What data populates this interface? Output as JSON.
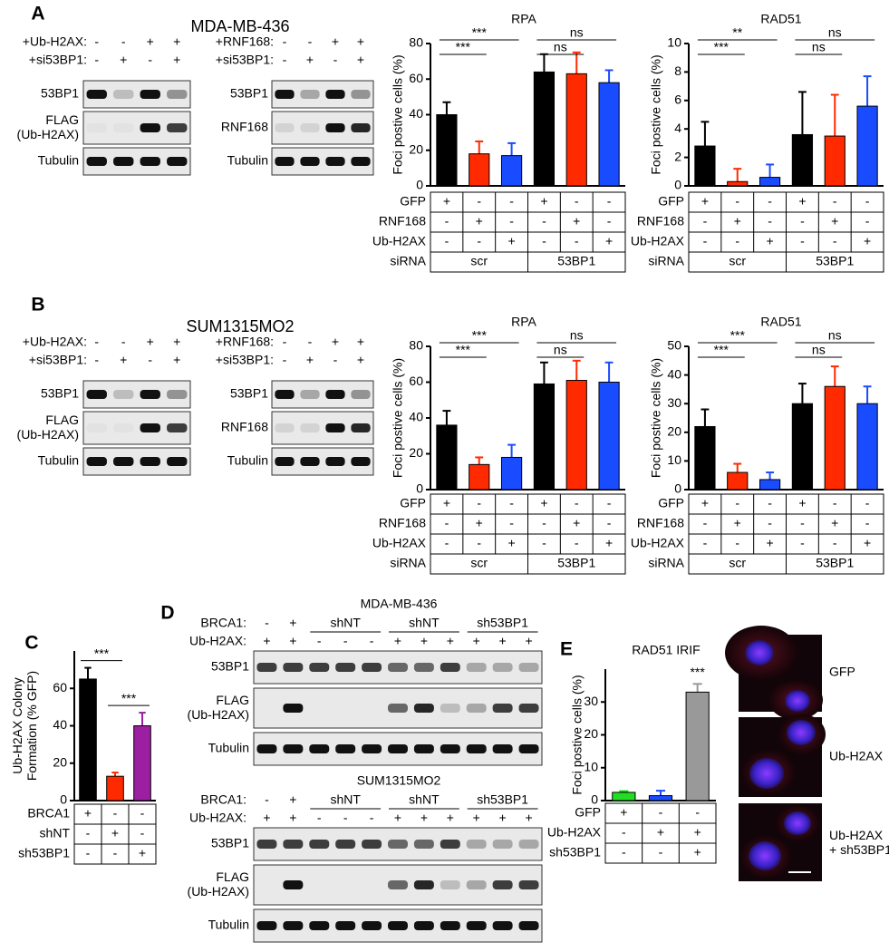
{
  "panel_labels": [
    "A",
    "B",
    "C",
    "D",
    "E"
  ],
  "blots_ab": [
    {
      "cell_line": "MDA-MB-436",
      "left": {
        "rows": [
          {
            "label": "+Ub-H2AX:",
            "values": [
              "-",
              "-",
              "+",
              "+"
            ]
          },
          {
            "label": "+si53BP1:",
            "values": [
              "-",
              "+",
              "-",
              "+"
            ]
          }
        ],
        "bands": [
          "53BP1",
          "FLAG\n(Ub-H2AX)",
          "Tubulin"
        ]
      },
      "right": {
        "rows": [
          {
            "label": "+RNF168:",
            "values": [
              "-",
              "-",
              "+",
              "+"
            ]
          },
          {
            "label": "+si53BP1:",
            "values": [
              "-",
              "+",
              "-",
              "+"
            ]
          }
        ],
        "bands": [
          "53BP1",
          "RNF168",
          "Tubulin"
        ]
      }
    },
    {
      "cell_line": "SUM1315MO2",
      "left": {
        "rows": [
          {
            "label": "+Ub-H2AX:",
            "values": [
              "-",
              "-",
              "+",
              "+"
            ]
          },
          {
            "label": "+si53BP1:",
            "values": [
              "-",
              "+",
              "-",
              "+"
            ]
          }
        ],
        "bands": [
          "53BP1",
          "FLAG\n(Ub-H2AX)",
          "Tubulin"
        ]
      },
      "right": {
        "rows": [
          {
            "label": "+RNF168:",
            "values": [
              "-",
              "-",
              "+",
              "+"
            ]
          },
          {
            "label": "+si53BP1:",
            "values": [
              "-",
              "+",
              "-",
              "+"
            ]
          }
        ],
        "bands": [
          "53BP1",
          "RNF168",
          "Tubulin"
        ]
      }
    }
  ],
  "blots_d": [
    {
      "cell_line": "MDA-MB-436",
      "brca1_label": "BRCA1:",
      "brca1": [
        "-",
        "+",
        "shNT",
        "shNT",
        "sh53BP1"
      ],
      "ub_label": "Ub-H2AX:",
      "ub": [
        "+",
        "+",
        "-",
        "-",
        "-",
        "+",
        "+",
        "+",
        "+",
        "+",
        "+"
      ],
      "bands": [
        "53BP1",
        "FLAG\n(Ub-H2AX)",
        "Tubulin"
      ]
    },
    {
      "cell_line": "SUM1315MO2",
      "brca1_label": "BRCA1:",
      "brca1": [
        "-",
        "+",
        "shNT",
        "shNT",
        "sh53BP1"
      ],
      "ub_label": "Ub-H2AX:",
      "ub": [
        "+",
        "+",
        "-",
        "-",
        "-",
        "+",
        "+",
        "+",
        "+",
        "+",
        "+"
      ],
      "bands": [
        "53BP1",
        "FLAG\n(Ub-H2AX)",
        "Tubulin"
      ]
    }
  ],
  "images": [
    "GFP",
    "Ub-H2AX",
    "Ub-H2AX\n+ sh53BP1"
  ],
  "chart_data": [
    {
      "type": "bar",
      "title": "RPA",
      "y_label": "Foci postive cells (%)",
      "values": [
        40,
        18,
        17,
        64,
        63,
        58
      ],
      "errors": [
        7,
        7,
        7,
        10,
        12,
        7
      ],
      "colors": [
        "#000000",
        "#ff2a00",
        "#1a4cff",
        "#000000",
        "#ff2a00",
        "#1a4cff"
      ],
      "ylim": [
        0,
        80
      ],
      "yticks": [
        0,
        20,
        40,
        60,
        80
      ],
      "significance": [
        {
          "label": "***",
          "from": 0,
          "to": 1
        },
        {
          "label": "***",
          "from": 0,
          "to": 2
        },
        {
          "label": "ns",
          "from": 3,
          "to": 4
        },
        {
          "label": "ns",
          "from": 3,
          "to": 5
        }
      ],
      "conditions": [
        {
          "label": "GFP",
          "values": [
            "+",
            "-",
            "-",
            "+",
            "-",
            "-"
          ]
        },
        {
          "label": "RNF168",
          "values": [
            "-",
            "+",
            "-",
            "-",
            "+",
            "-"
          ]
        },
        {
          "label": "Ub-H2AX",
          "values": [
            "-",
            "-",
            "+",
            "-",
            "-",
            "+"
          ]
        }
      ],
      "groups": {
        "label": "siRNA",
        "names": [
          "scr",
          "53BP1"
        ]
      }
    },
    {
      "type": "bar",
      "title": "RAD51",
      "y_label": "Foci postive cells (%)",
      "values": [
        2.8,
        0.3,
        0.6,
        3.6,
        3.5,
        5.6
      ],
      "errors": [
        1.7,
        0.9,
        0.9,
        3.0,
        2.9,
        2.1
      ],
      "colors": [
        "#000000",
        "#ff2a00",
        "#1a4cff",
        "#000000",
        "#ff2a00",
        "#1a4cff"
      ],
      "ylim": [
        0,
        10
      ],
      "yticks": [
        0,
        2,
        4,
        6,
        8,
        10
      ],
      "significance": [
        {
          "label": "***",
          "from": 0,
          "to": 1
        },
        {
          "label": "**",
          "from": 0,
          "to": 2
        },
        {
          "label": "ns",
          "from": 3,
          "to": 4
        },
        {
          "label": "ns",
          "from": 3,
          "to": 5
        }
      ],
      "conditions": [
        {
          "label": "GFP",
          "values": [
            "+",
            "-",
            "-",
            "+",
            "-",
            "-"
          ]
        },
        {
          "label": "RNF168",
          "values": [
            "-",
            "+",
            "-",
            "-",
            "+",
            "-"
          ]
        },
        {
          "label": "Ub-H2AX",
          "values": [
            "-",
            "-",
            "+",
            "-",
            "-",
            "+"
          ]
        }
      ],
      "groups": {
        "label": "siRNA",
        "names": [
          "scr",
          "53BP1"
        ]
      }
    },
    {
      "type": "bar",
      "title": "RPA",
      "y_label": "Foci postive cells (%)",
      "values": [
        36,
        14,
        18,
        59,
        61,
        60
      ],
      "errors": [
        8,
        4,
        7,
        12,
        11,
        11
      ],
      "colors": [
        "#000000",
        "#ff2a00",
        "#1a4cff",
        "#000000",
        "#ff2a00",
        "#1a4cff"
      ],
      "ylim": [
        0,
        80
      ],
      "yticks": [
        0,
        20,
        40,
        60,
        80
      ],
      "significance": [
        {
          "label": "***",
          "from": 0,
          "to": 1
        },
        {
          "label": "***",
          "from": 0,
          "to": 2
        },
        {
          "label": "ns",
          "from": 3,
          "to": 4
        },
        {
          "label": "ns",
          "from": 3,
          "to": 5
        }
      ],
      "conditions": [
        {
          "label": "GFP",
          "values": [
            "+",
            "-",
            "-",
            "+",
            "-",
            "-"
          ]
        },
        {
          "label": "RNF168",
          "values": [
            "-",
            "+",
            "-",
            "-",
            "+",
            "-"
          ]
        },
        {
          "label": "Ub-H2AX",
          "values": [
            "-",
            "-",
            "+",
            "-",
            "-",
            "+"
          ]
        }
      ],
      "groups": {
        "label": "siRNA",
        "names": [
          "scr",
          "53BP1"
        ]
      }
    },
    {
      "type": "bar",
      "title": "RAD51",
      "y_label": "Foci postive cells (%)",
      "values": [
        22,
        6,
        3.5,
        30,
        36,
        30
      ],
      "errors": [
        6,
        3,
        2.5,
        7,
        7,
        6
      ],
      "colors": [
        "#000000",
        "#ff2a00",
        "#1a4cff",
        "#000000",
        "#ff2a00",
        "#1a4cff"
      ],
      "ylim": [
        0,
        50
      ],
      "yticks": [
        0,
        10,
        20,
        30,
        40,
        50
      ],
      "significance": [
        {
          "label": "***",
          "from": 0,
          "to": 1
        },
        {
          "label": "***",
          "from": 0,
          "to": 2
        },
        {
          "label": "ns",
          "from": 3,
          "to": 4
        },
        {
          "label": "ns",
          "from": 3,
          "to": 5
        }
      ],
      "conditions": [
        {
          "label": "GFP",
          "values": [
            "+",
            "-",
            "-",
            "+",
            "-",
            "-"
          ]
        },
        {
          "label": "RNF168",
          "values": [
            "-",
            "+",
            "-",
            "-",
            "+",
            "-"
          ]
        },
        {
          "label": "Ub-H2AX",
          "values": [
            "-",
            "-",
            "+",
            "-",
            "-",
            "+"
          ]
        }
      ],
      "groups": {
        "label": "siRNA",
        "names": [
          "scr",
          "53BP1"
        ]
      }
    },
    {
      "type": "bar",
      "y_label": "Ub-H2AX Colony\nFormation (% GFP)",
      "values": [
        65,
        13,
        40
      ],
      "errors": [
        6,
        2,
        7
      ],
      "colors": [
        "#000000",
        "#ff2a00",
        "#9b1fa0"
      ],
      "ylim": [
        0,
        80
      ],
      "yticks": [
        0,
        20,
        40,
        60
      ],
      "significance": [
        {
          "label": "***",
          "from": 0,
          "to": 1
        },
        {
          "label": "***",
          "from": 1,
          "to": 2
        }
      ],
      "conditions": [
        {
          "label": "BRCA1",
          "values": [
            "+",
            "-",
            "-"
          ]
        },
        {
          "label": "shNT",
          "values": [
            "-",
            "+",
            "-"
          ]
        },
        {
          "label": "sh53BP1",
          "values": [
            "-",
            "-",
            "+"
          ]
        }
      ]
    },
    {
      "type": "bar",
      "title": "RAD51 IRIF",
      "y_label": "Foci postive cells (%)",
      "values": [
        2.5,
        1.5,
        33
      ],
      "errors": [
        0.4,
        1.5,
        2.5
      ],
      "colors": [
        "#22dd22",
        "#1a4cff",
        "#999999"
      ],
      "ylim": [
        0,
        40
      ],
      "yticks": [
        0,
        10,
        20,
        30
      ],
      "significance": [
        {
          "label": "***",
          "from": 2,
          "to": 2
        }
      ],
      "conditions": [
        {
          "label": "GFP",
          "values": [
            "+",
            "-",
            "-"
          ]
        },
        {
          "label": "Ub-H2AX",
          "values": [
            "-",
            "+",
            "+"
          ]
        },
        {
          "label": "sh53BP1",
          "values": [
            "-",
            "-",
            "+"
          ]
        }
      ]
    }
  ]
}
